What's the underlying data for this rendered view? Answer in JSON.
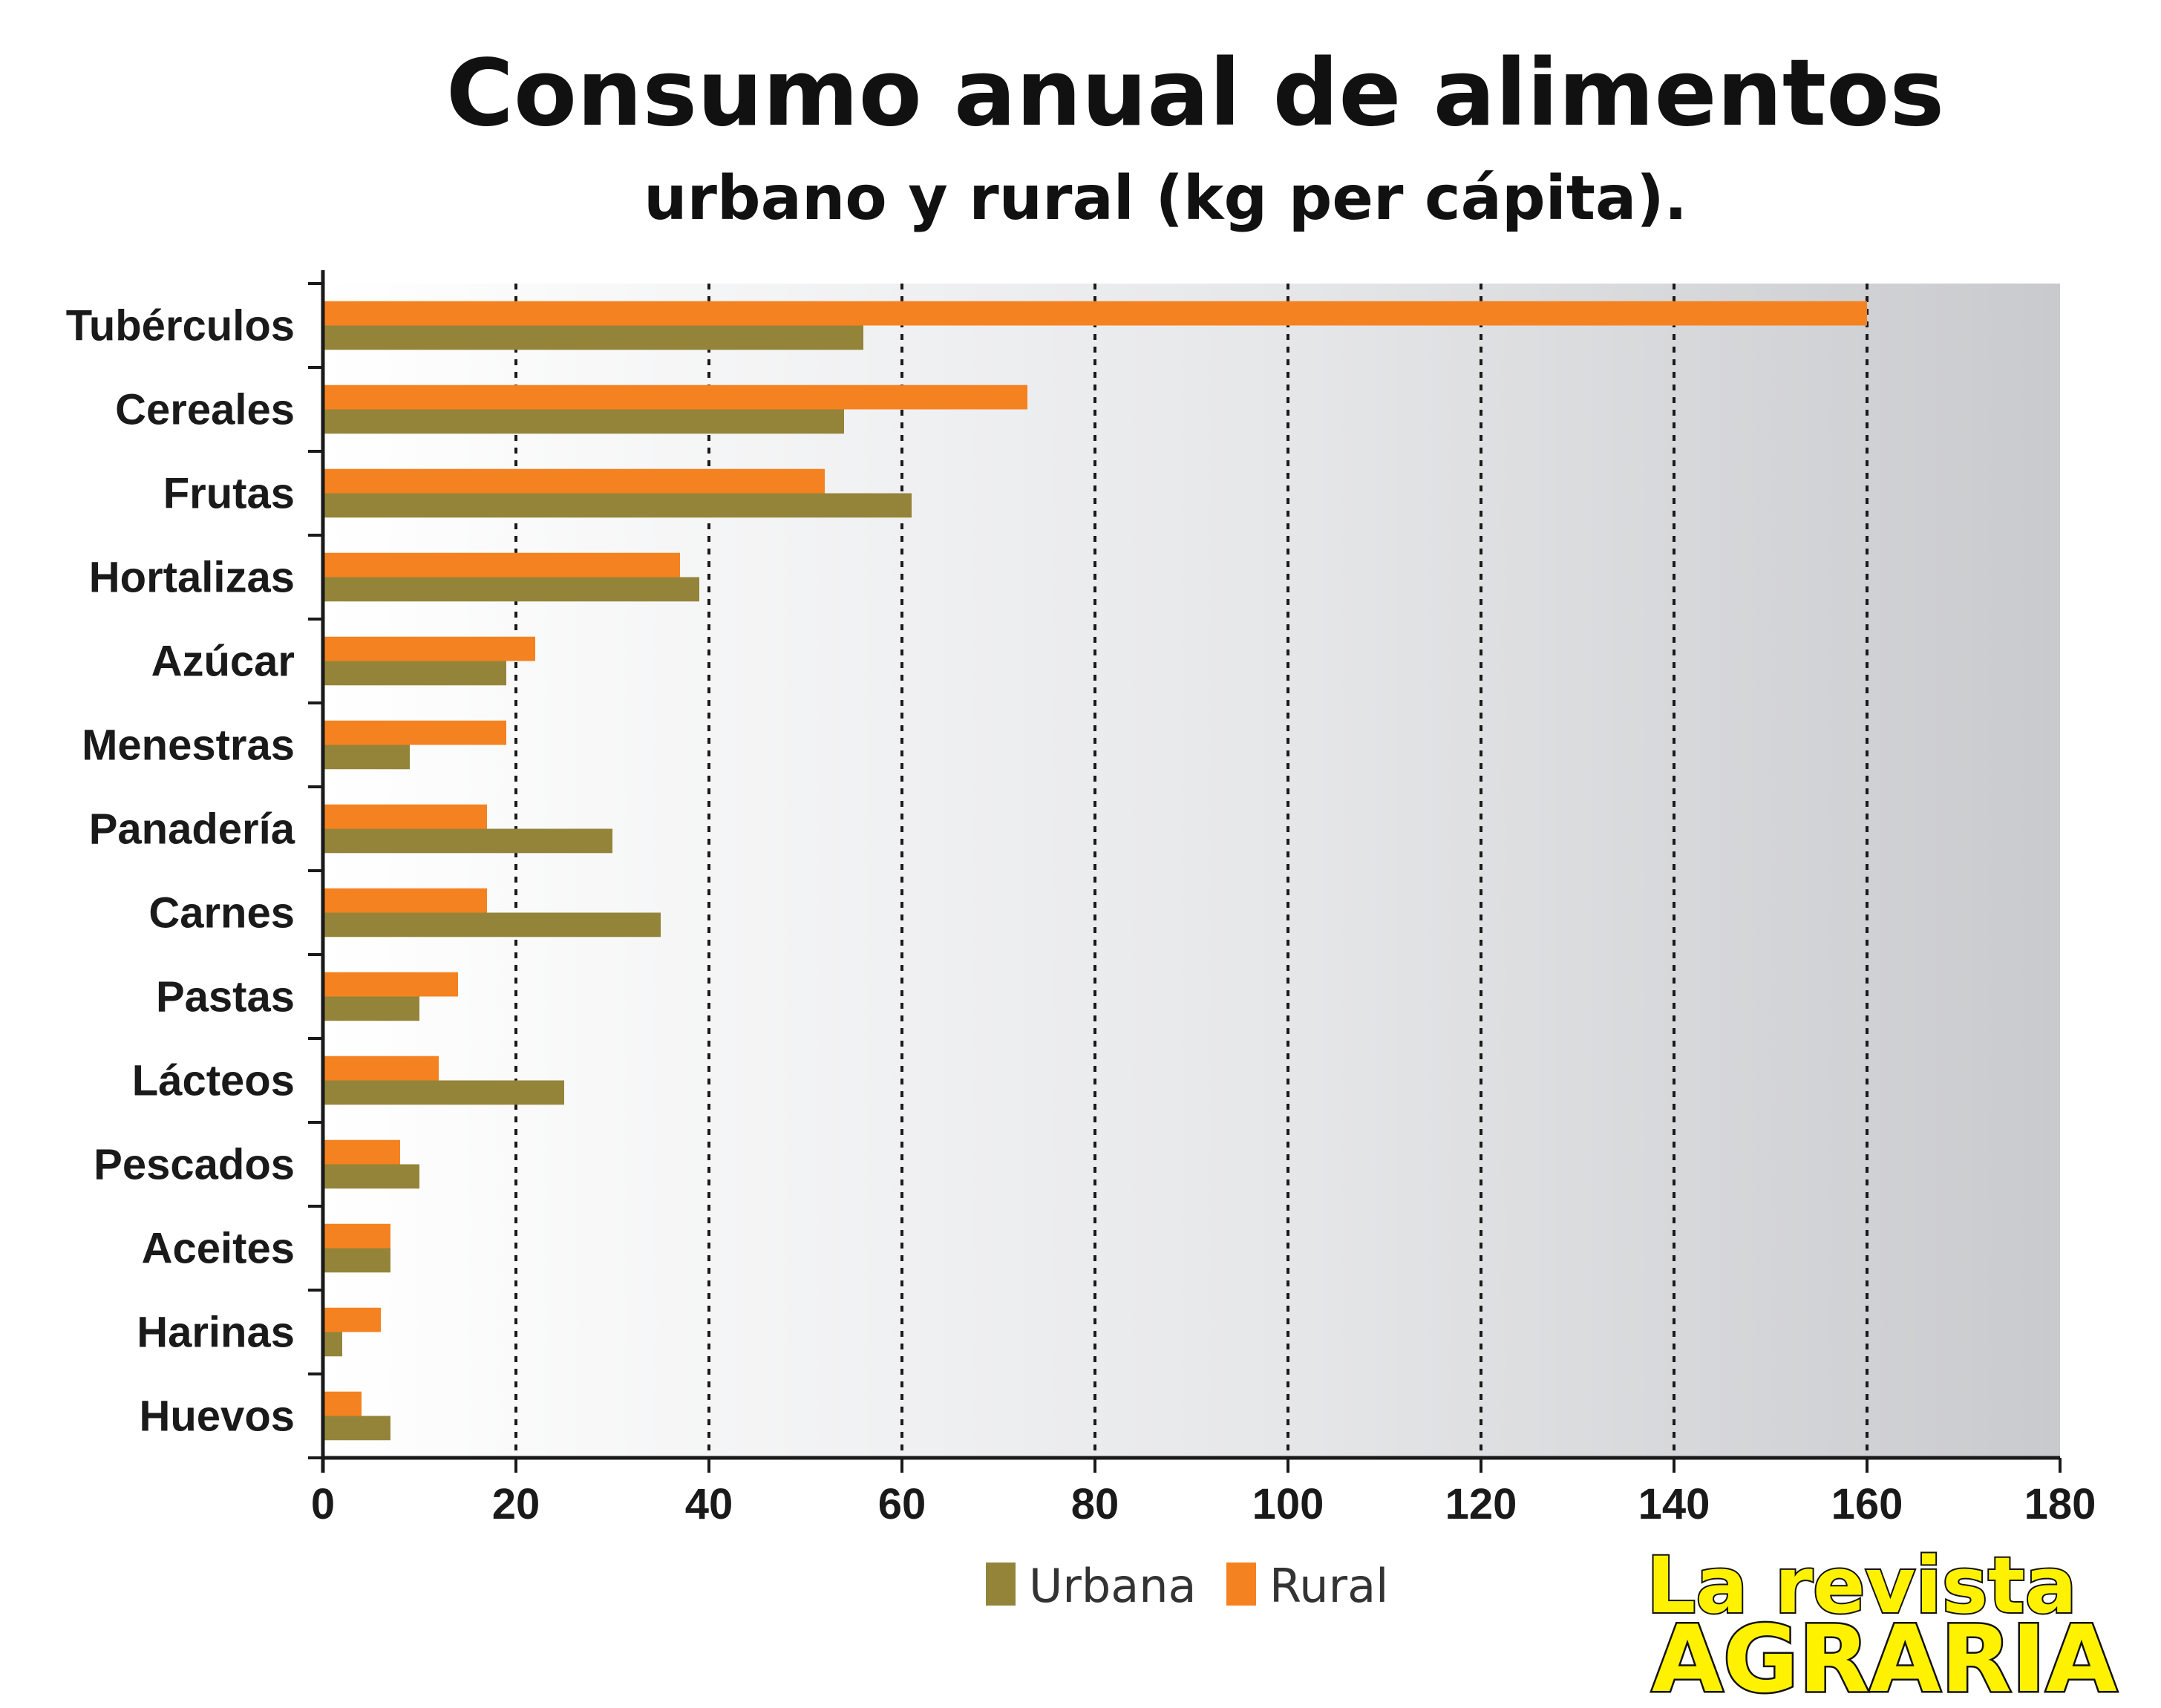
{
  "chart_data": {
    "type": "bar",
    "orientation": "horizontal",
    "title": "Consumo anual de alimentos",
    "subtitle": "urbano y rural (kg per  cápita).",
    "xlim": [
      0,
      180
    ],
    "x_ticks": [
      "0",
      "20",
      "40",
      "60",
      "80",
      "100",
      "120",
      "140",
      "160",
      "180"
    ],
    "grid": "vertical dashed",
    "legend_position": "bottom-center",
    "categories": [
      "Tubérculos",
      "Cereales",
      "Frutas",
      "Hortalizas",
      "Azúcar",
      "Menestras",
      "Panadería",
      "Carnes",
      "Pastas",
      "Lácteos",
      "Pescados",
      "Aceites",
      "Harinas",
      "Huevos"
    ],
    "series": [
      {
        "name": "Rural",
        "color": "#f58220",
        "values": [
          160,
          73,
          52,
          37,
          22,
          19,
          17,
          17,
          14,
          12,
          8,
          7,
          6,
          4
        ]
      },
      {
        "name": "Urbana",
        "color": "#94843a",
        "values": [
          56,
          54,
          61,
          39,
          19,
          9,
          30,
          35,
          10,
          25,
          10,
          7,
          2,
          7
        ]
      }
    ]
  },
  "legend": {
    "urbana": "Urbana",
    "rural": "Rural"
  },
  "brand": {
    "line1": "La revista",
    "line2": "AGRARIA"
  }
}
